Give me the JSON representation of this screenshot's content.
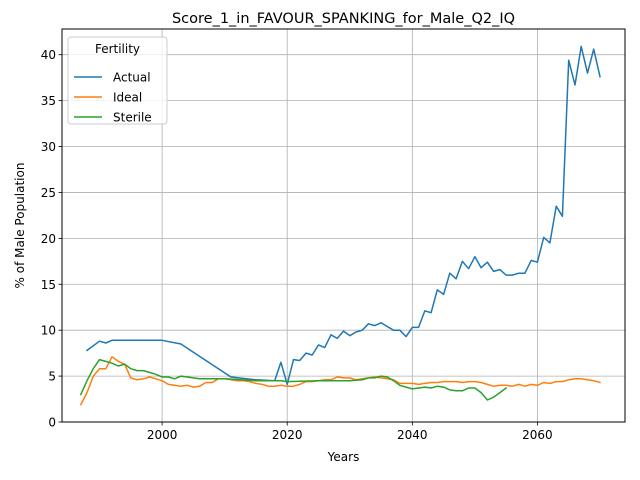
{
  "chart_data": {
    "type": "line",
    "title": "Score_1_in_FAVOUR_SPANKING_for_Male_Q2_IQ",
    "xlabel": "Years",
    "ylabel": "% of Male Population",
    "xlim": [
      1984,
      2074
    ],
    "ylim": [
      0,
      42.8
    ],
    "xticks": [
      2000,
      2020,
      2040,
      2060
    ],
    "yticks": [
      0,
      5,
      10,
      15,
      20,
      25,
      30,
      35,
      40
    ],
    "grid": true,
    "legend": {
      "title": "Fertility",
      "position": "top-left"
    },
    "colors": {
      "Actual": "#1f77b4",
      "Ideal": "#ff7f0e",
      "Sterile": "#2ca02c"
    },
    "series": [
      {
        "name": "Actual",
        "points": [
          [
            1988,
            7.8
          ],
          [
            1990,
            8.8
          ],
          [
            1991,
            8.6
          ],
          [
            1992,
            8.9
          ],
          [
            1995,
            8.9
          ],
          [
            2000,
            8.9
          ],
          [
            2003,
            8.5
          ],
          [
            2011,
            4.9
          ],
          [
            2015,
            4.6
          ],
          [
            2018,
            4.5
          ],
          [
            2019,
            6.5
          ],
          [
            2020,
            4.1
          ],
          [
            2021,
            6.8
          ],
          [
            2022,
            6.7
          ],
          [
            2023,
            7.5
          ],
          [
            2024,
            7.3
          ],
          [
            2025,
            8.4
          ],
          [
            2026,
            8.1
          ],
          [
            2027,
            9.5
          ],
          [
            2028,
            9.1
          ],
          [
            2029,
            9.9
          ],
          [
            2030,
            9.4
          ],
          [
            2031,
            9.8
          ],
          [
            2032,
            10.0
          ],
          [
            2033,
            10.7
          ],
          [
            2034,
            10.5
          ],
          [
            2035,
            10.8
          ],
          [
            2036,
            10.4
          ],
          [
            2037,
            10.0
          ],
          [
            2038,
            10.0
          ],
          [
            2039,
            9.3
          ],
          [
            2040,
            10.3
          ],
          [
            2041,
            10.3
          ],
          [
            2042,
            12.1
          ],
          [
            2043,
            11.9
          ],
          [
            2044,
            14.4
          ],
          [
            2045,
            13.9
          ],
          [
            2046,
            16.2
          ],
          [
            2047,
            15.6
          ],
          [
            2048,
            17.5
          ],
          [
            2049,
            16.7
          ],
          [
            2050,
            18.0
          ],
          [
            2051,
            16.8
          ],
          [
            2052,
            17.4
          ],
          [
            2053,
            16.4
          ],
          [
            2054,
            16.6
          ],
          [
            2055,
            16.0
          ],
          [
            2056,
            16.0
          ],
          [
            2057,
            16.2
          ],
          [
            2058,
            16.2
          ],
          [
            2059,
            17.6
          ],
          [
            2060,
            17.4
          ],
          [
            2061,
            20.1
          ],
          [
            2062,
            19.5
          ],
          [
            2063,
            23.5
          ],
          [
            2064,
            22.4
          ],
          [
            2065,
            39.4
          ],
          [
            2066,
            36.7
          ],
          [
            2067,
            40.9
          ],
          [
            2068,
            38.0
          ],
          [
            2069,
            40.6
          ],
          [
            2070,
            37.6
          ]
        ]
      },
      {
        "name": "Ideal",
        "points": [
          [
            1987,
            1.9
          ],
          [
            1988,
            3.2
          ],
          [
            1989,
            5.0
          ],
          [
            1990,
            5.8
          ],
          [
            1991,
            5.8
          ],
          [
            1992,
            7.1
          ],
          [
            1993,
            6.6
          ],
          [
            1994,
            6.3
          ],
          [
            1995,
            4.8
          ],
          [
            1996,
            4.6
          ],
          [
            1997,
            4.7
          ],
          [
            1998,
            4.9
          ],
          [
            1999,
            4.7
          ],
          [
            2000,
            4.5
          ],
          [
            2001,
            4.1
          ],
          [
            2002,
            4.0
          ],
          [
            2003,
            3.9
          ],
          [
            2004,
            4.0
          ],
          [
            2005,
            3.8
          ],
          [
            2006,
            3.9
          ],
          [
            2007,
            4.3
          ],
          [
            2008,
            4.3
          ],
          [
            2009,
            4.7
          ],
          [
            2010,
            4.7
          ],
          [
            2011,
            4.6
          ],
          [
            2012,
            4.5
          ],
          [
            2013,
            4.5
          ],
          [
            2014,
            4.4
          ],
          [
            2015,
            4.2
          ],
          [
            2016,
            4.1
          ],
          [
            2017,
            3.9
          ],
          [
            2018,
            3.9
          ],
          [
            2019,
            4.0
          ],
          [
            2020,
            3.9
          ],
          [
            2021,
            3.9
          ],
          [
            2022,
            4.1
          ],
          [
            2023,
            4.4
          ],
          [
            2024,
            4.4
          ],
          [
            2025,
            4.5
          ],
          [
            2026,
            4.6
          ],
          [
            2027,
            4.6
          ],
          [
            2028,
            4.9
          ],
          [
            2029,
            4.8
          ],
          [
            2030,
            4.8
          ],
          [
            2031,
            4.6
          ],
          [
            2032,
            4.7
          ],
          [
            2033,
            4.8
          ],
          [
            2034,
            4.9
          ],
          [
            2035,
            4.8
          ],
          [
            2036,
            4.7
          ],
          [
            2037,
            4.6
          ],
          [
            2038,
            4.2
          ],
          [
            2039,
            4.2
          ],
          [
            2040,
            4.2
          ],
          [
            2041,
            4.1
          ],
          [
            2042,
            4.2
          ],
          [
            2043,
            4.3
          ],
          [
            2044,
            4.3
          ],
          [
            2045,
            4.4
          ],
          [
            2046,
            4.4
          ],
          [
            2047,
            4.4
          ],
          [
            2048,
            4.3
          ],
          [
            2049,
            4.4
          ],
          [
            2050,
            4.4
          ],
          [
            2051,
            4.3
          ],
          [
            2052,
            4.1
          ],
          [
            2053,
            3.9
          ],
          [
            2054,
            4.0
          ],
          [
            2055,
            4.0
          ],
          [
            2056,
            3.9
          ],
          [
            2057,
            4.1
          ],
          [
            2058,
            3.9
          ],
          [
            2059,
            4.1
          ],
          [
            2060,
            4.0
          ],
          [
            2061,
            4.3
          ],
          [
            2062,
            4.2
          ],
          [
            2063,
            4.4
          ],
          [
            2064,
            4.4
          ],
          [
            2065,
            4.6
          ],
          [
            2066,
            4.7
          ],
          [
            2067,
            4.7
          ],
          [
            2068,
            4.6
          ],
          [
            2069,
            4.5
          ],
          [
            2070,
            4.3
          ]
        ]
      },
      {
        "name": "Sterile",
        "points": [
          [
            1987,
            3.0
          ],
          [
            1988,
            4.5
          ],
          [
            1989,
            5.8
          ],
          [
            1990,
            6.8
          ],
          [
            1991,
            6.6
          ],
          [
            1992,
            6.4
          ],
          [
            1993,
            6.1
          ],
          [
            1994,
            6.3
          ],
          [
            1995,
            5.8
          ],
          [
            1996,
            5.6
          ],
          [
            1997,
            5.6
          ],
          [
            1998,
            5.4
          ],
          [
            1999,
            5.2
          ],
          [
            2000,
            4.9
          ],
          [
            2001,
            4.9
          ],
          [
            2002,
            4.7
          ],
          [
            2003,
            5.0
          ],
          [
            2004,
            4.9
          ],
          [
            2005,
            4.8
          ],
          [
            2006,
            4.7
          ],
          [
            2007,
            4.7
          ],
          [
            2008,
            4.7
          ],
          [
            2009,
            4.7
          ],
          [
            2010,
            4.7
          ],
          [
            2015,
            4.5
          ],
          [
            2019,
            4.5
          ],
          [
            2020,
            4.4
          ],
          [
            2025,
            4.5
          ],
          [
            2030,
            4.5
          ],
          [
            2032,
            4.6
          ],
          [
            2033,
            4.8
          ],
          [
            2034,
            4.8
          ],
          [
            2035,
            5.0
          ],
          [
            2036,
            4.9
          ],
          [
            2037,
            4.5
          ],
          [
            2038,
            4.0
          ],
          [
            2039,
            3.8
          ],
          [
            2040,
            3.6
          ],
          [
            2041,
            3.7
          ],
          [
            2042,
            3.8
          ],
          [
            2043,
            3.7
          ],
          [
            2044,
            3.9
          ],
          [
            2045,
            3.8
          ],
          [
            2046,
            3.5
          ],
          [
            2047,
            3.4
          ],
          [
            2048,
            3.4
          ],
          [
            2049,
            3.7
          ],
          [
            2050,
            3.7
          ],
          [
            2051,
            3.2
          ],
          [
            2052,
            2.4
          ],
          [
            2053,
            2.7
          ],
          [
            2054,
            3.2
          ],
          [
            2055,
            3.7
          ]
        ]
      }
    ]
  }
}
